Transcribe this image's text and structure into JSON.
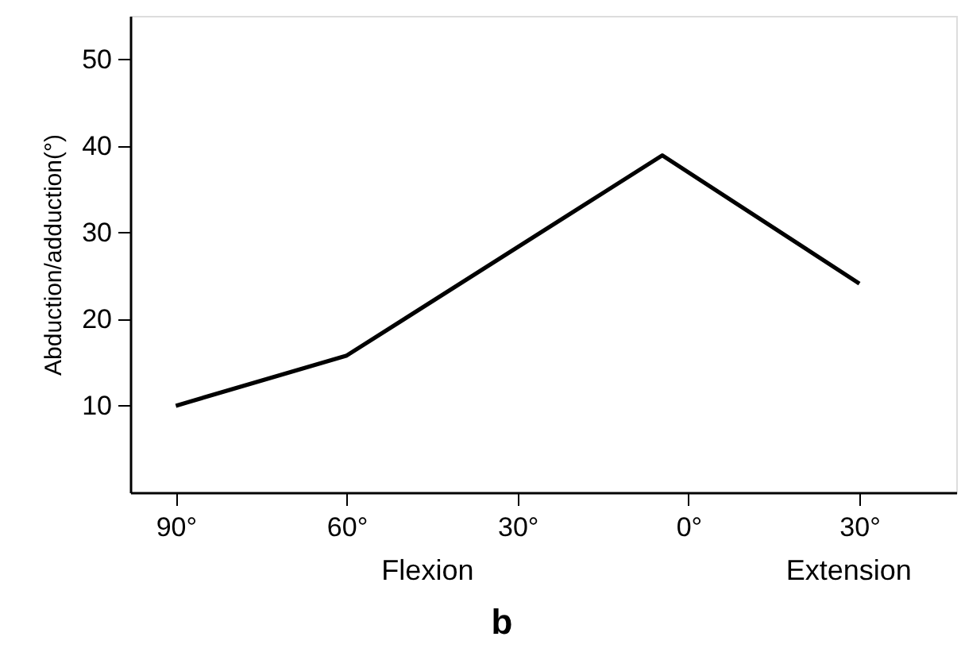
{
  "chart_data": {
    "type": "line",
    "ylabel": "Abduction/adduction(°)",
    "x": [
      -90,
      -60,
      -4.6,
      30
    ],
    "series": [
      {
        "color": "#000000",
        "values": [
          10,
          15.8,
          38.9,
          24.1
        ]
      }
    ],
    "xlim": [
      -98,
      47
    ],
    "xticks": [
      {
        "value": -90,
        "label": "90°"
      },
      {
        "value": -60,
        "label": "60°"
      },
      {
        "value": -30,
        "label": "30°"
      },
      {
        "value": 0,
        "label": "0°"
      },
      {
        "value": 30,
        "label": "30°"
      }
    ],
    "ylim": [
      0,
      55
    ],
    "yticks": [
      10,
      20,
      30,
      40,
      50
    ],
    "annotations": [
      "Flexion",
      "Extension",
      "b"
    ],
    "grid": false,
    "marker": "none",
    "line_style": "solid"
  }
}
